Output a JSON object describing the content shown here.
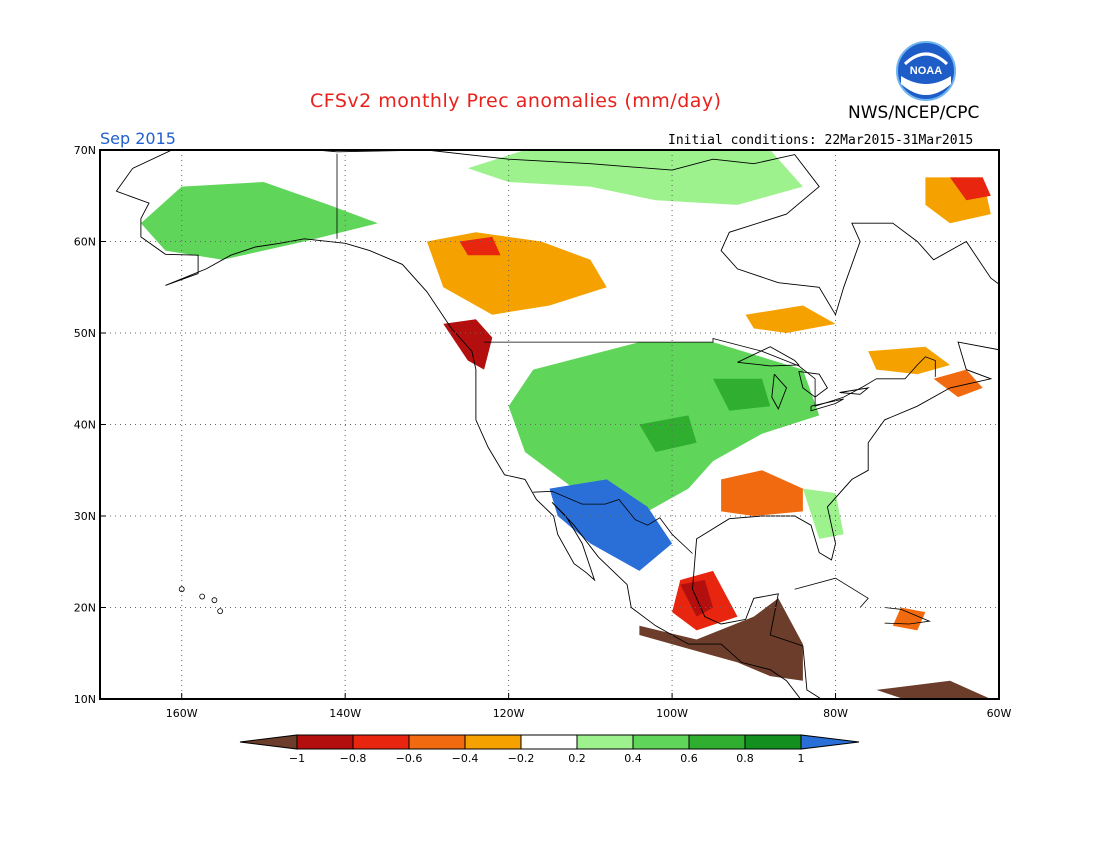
{
  "header": {
    "title": "CFSv2 monthly Prec anomalies (mm/day)",
    "org": "NWS/NCEP/CPC",
    "logo_text": "NOAA",
    "month": "Sep 2015",
    "init": "Initial conditions: 22Mar2015-31Mar2015"
  },
  "axes": {
    "lat_labels": [
      "70N",
      "60N",
      "50N",
      "40N",
      "30N",
      "20N",
      "10N"
    ],
    "lon_labels": [
      "160W",
      "140W",
      "120W",
      "100W",
      "80W",
      "60W"
    ]
  },
  "colorbar": {
    "tick_labels": [
      "-1",
      "-0.8",
      "-0.6",
      "-0.4",
      "-0.2",
      "0.2",
      "0.4",
      "0.6",
      "0.8",
      "1"
    ],
    "colors": {
      "below_min": "#6b3d2a",
      "-1_-0.8": "#b30f0f",
      "-0.8_-0.6": "#e8250e",
      "-0.6_-0.4": "#f26a10",
      "-0.4_-0.2": "#f5a100",
      "-0.2_0.2": "#ffffff",
      "0.2_0.4": "#9df28e",
      "0.4_0.6": "#5fd65a",
      "0.6_0.8": "#2fae2f",
      "0.8_1": "#128f1e",
      "above_max": "#2a6fd8"
    }
  },
  "regions": [
    {
      "name": "central-us",
      "category": "0.4_0.6"
    },
    {
      "name": "southwest-us-mexico",
      "category": "above_max"
    },
    {
      "name": "gulf-coast-south",
      "category": "-0.6_-0.4"
    },
    {
      "name": "central-america",
      "category": "below_min"
    },
    {
      "name": "pacific-northwest",
      "category": "-1_-0.8"
    },
    {
      "name": "western-canada",
      "category": "-0.4_-0.2"
    },
    {
      "name": "northern-canada",
      "category": "0.2_0.4"
    },
    {
      "name": "alaska",
      "category": "0.4_0.6"
    }
  ]
}
